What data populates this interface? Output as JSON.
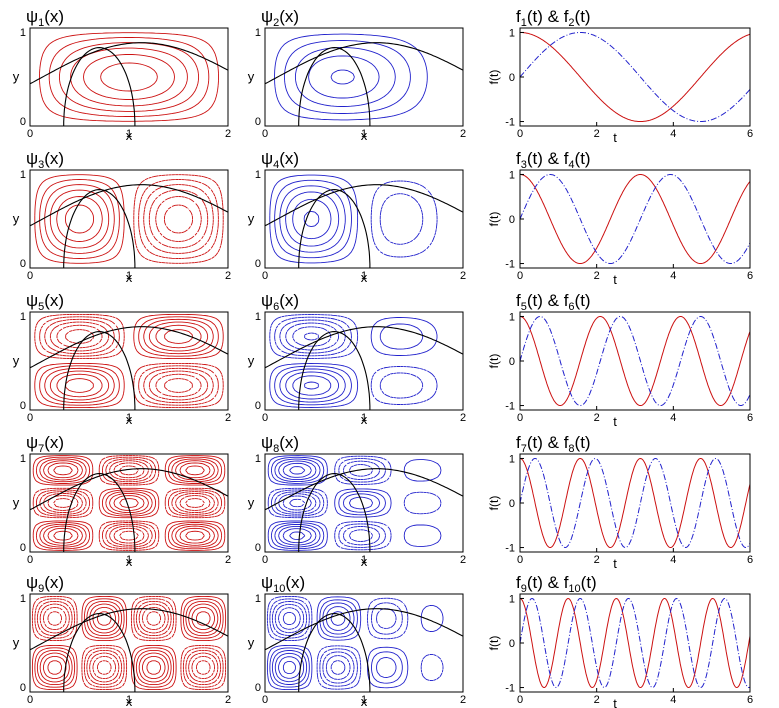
{
  "colors": {
    "odd": "#cc1111",
    "even": "#2222cc",
    "trajectory": "#000000",
    "axis": "#000000"
  },
  "chart_data": {
    "type": "contour-and-line-grid",
    "rows": [
      {
        "left": {
          "title": "ψ1(x)",
          "sym": "ψ",
          "sub": "1",
          "arg": "(x)",
          "mode": [
            1,
            1
          ],
          "color": "red"
        },
        "mid": {
          "title": "ψ2(x)",
          "sym": "ψ",
          "sub": "2",
          "arg": "(x)",
          "mode": [
            1,
            1
          ],
          "color": "blue"
        },
        "right": {
          "title": "f1(t) & f2(t)",
          "s1": "1",
          "s2": "2",
          "omega": 1
        }
      },
      {
        "left": {
          "title": "ψ3(x)",
          "sym": "ψ",
          "sub": "3",
          "arg": "(x)",
          "mode": [
            2,
            1
          ],
          "color": "red"
        },
        "mid": {
          "title": "ψ4(x)",
          "sym": "ψ",
          "sub": "4",
          "arg": "(x)",
          "mode": [
            2,
            1
          ],
          "color": "blue"
        },
        "right": {
          "title": "f3(t) & f4(t)",
          "s1": "3",
          "s2": "4",
          "omega": 2
        }
      },
      {
        "left": {
          "title": "ψ5(x)",
          "sym": "ψ",
          "sub": "5",
          "arg": "(x)",
          "mode": [
            2,
            2
          ],
          "color": "red"
        },
        "mid": {
          "title": "ψ6(x)",
          "sym": "ψ",
          "sub": "6",
          "arg": "(x)",
          "mode": [
            2,
            2
          ],
          "color": "blue"
        },
        "right": {
          "title": "f5(t) & f6(t)",
          "s1": "5",
          "s2": "6",
          "omega": 3
        }
      },
      {
        "left": {
          "title": "ψ7(x)",
          "sym": "ψ",
          "sub": "7",
          "arg": "(x)",
          "mode": [
            3,
            3
          ],
          "color": "red"
        },
        "mid": {
          "title": "ψ8(x)",
          "sym": "ψ",
          "sub": "8",
          "arg": "(x)",
          "mode": [
            3,
            3
          ],
          "color": "blue"
        },
        "right": {
          "title": "f7(t) & f8(t)",
          "s1": "7",
          "s2": "8",
          "omega": 4
        }
      },
      {
        "left": {
          "title": "ψ9(x)",
          "sym": "ψ",
          "sub": "9",
          "arg": "(x)",
          "mode": [
            4,
            2
          ],
          "color": "red"
        },
        "mid": {
          "title": "ψ10(x)",
          "sym": "ψ",
          "sub": "10",
          "arg": "(x)",
          "mode": [
            4,
            2
          ],
          "color": "blue"
        },
        "right": {
          "title": "f9(t) & f10(t)",
          "s1": "9",
          "s2": "10",
          "omega": 5
        }
      }
    ],
    "contour_axes": {
      "xlabel": "x",
      "ylabel": "y",
      "xlim": [
        0,
        2
      ],
      "ylim": [
        0,
        1
      ],
      "xticks": [
        "0",
        "1",
        "2"
      ],
      "yticks": [
        "0",
        "1"
      ]
    },
    "line_axes": {
      "xlabel": "t",
      "ylabel": "f(t)",
      "xlim": [
        0,
        6
      ],
      "ylim": [
        -1.1,
        1.1
      ],
      "xticks": [
        "0",
        "2",
        "4",
        "6"
      ],
      "yticks": [
        "1",
        "0",
        "-1"
      ]
    },
    "series_styles": {
      "first": "solid red",
      "second": "dash-dot blue"
    }
  }
}
